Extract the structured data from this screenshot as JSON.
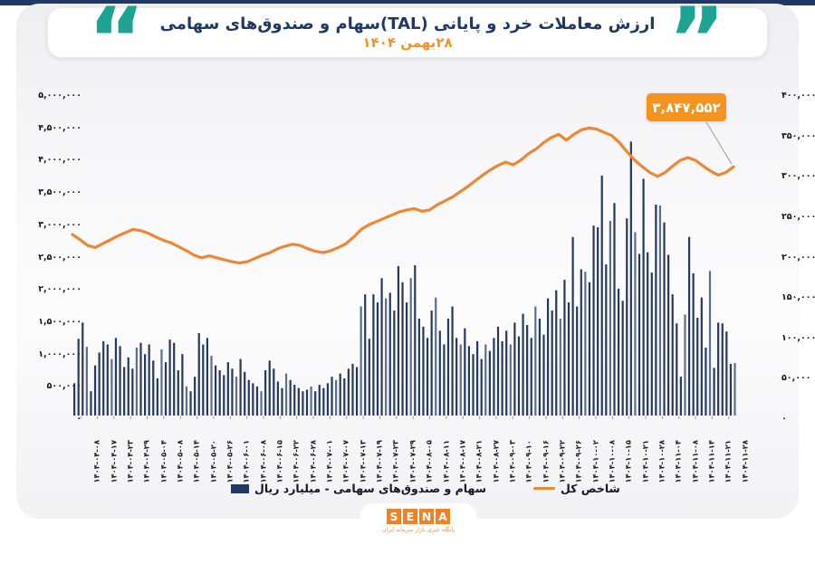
{
  "header": {
    "title": "ارزش معاملات خرد و پایانی (TAL)سهام و صندوق‌های سهامی",
    "subtitle": "۲۸بهمن ۱۴۰۴",
    "open_quote": "“",
    "close_quote": "”"
  },
  "colors": {
    "navy": "#1f3864",
    "bar": "#24395e",
    "bar_light": "#5c6e8e",
    "line": "#ed8733",
    "accent_orange": "#f6921e",
    "teal_quote": "#1ca392",
    "leader_gray": "#9a9a9a",
    "tick_text": "#161616"
  },
  "annotation": {
    "value": "۳,۸۴۷,۵۵۲"
  },
  "legend": {
    "bars_label": "سهام و صندوق‌های سهامی -  میلیارد ریال",
    "line_label": "شاخص کل"
  },
  "footer": {
    "logo_letters": [
      "S",
      "E",
      "N",
      "A"
    ],
    "tagline": "پایگاه خبری بازار سرمایه ایران"
  },
  "chart_data": {
    "type": "bar+line combo",
    "title": "ارزش معاملات خرد و پایانی (TAL)سهام و صندوق‌های سهامی ۲۸بهمن ۱۴۰۴",
    "grid": false,
    "legend_position": "bottom",
    "categories": [
      "۱۴۰۴-۰۴-۰۸",
      "۱۴۰۴-۰۴-۱۷",
      "۱۴۰۴-۰۴-۲۳",
      "۱۴۰۴-۰۴-۲۹",
      "۱۴۰۴-۰۵-۰۴",
      "۱۴۰۴-۰۵-۰۸",
      "۱۴۰۴-۰۵-۱۴",
      "۱۴۰۴-۰۵-۲۰",
      "۱۴۰۴-۰۵-۲۶",
      "۱۴۰۴-۰۶-۰۱",
      "۱۴۰۴-۰۶-۰۸",
      "۱۴۰۴-۰۶-۱۵",
      "۱۴۰۴-۰۶-۲۲",
      "۱۴۰۴-۰۶-۲۸",
      "۱۴۰۴-۰۷-۰۱",
      "۱۴۰۴-۰۷-۰۷",
      "۱۴۰۴-۰۷-۱۳",
      "۱۴۰۴-۰۷-۱۹",
      "۱۴۰۴-۰۷-۲۳",
      "۱۴۰۴-۰۷-۲۹",
      "۱۴۰۴-۰۸-۰۵",
      "۱۴۰۴-۰۸-۱۱",
      "۱۴۰۴-۰۸-۱۷",
      "۱۴۰۴-۰۸-۲۱",
      "۱۴۰۴-۰۸-۲۷",
      "۱۴۰۴-۰۹-۰۳",
      "۱۴۰۴-۰۹-۱۰",
      "۱۴۰۴-۰۹-۱۶",
      "۱۴۰۴-۰۹-۲۲",
      "۱۴۰۴-۰۹-۲۶",
      "۱۴۰۴-۱۰-۰۲",
      "۱۴۰۴-۱۰-۰۸",
      "۱۴۰۴-۱۰-۱۵",
      "۱۴۰۴-۱۰-۲۱",
      "۱۴۰۴-۱۰-۲۸",
      "۱۴۰۴-۱۱-۰۴",
      "۱۴۰۴-۱۱-۰۸",
      "۱۴۰۴-۱۱-۱۴",
      "۱۴۰۴-۱۱-۲۱",
      "۱۴۰۴-۱۱-۲۸"
    ],
    "left_axis": {
      "max": 5000000,
      "min": 0,
      "ticks": [
        "۵,۰۰۰,۰۰۰",
        "۴,۵۰۰,۰۰۰",
        "۴,۰۰۰,۰۰۰",
        "۳,۵۰۰,۰۰۰",
        "۳,۰۰۰,۰۰۰",
        "۲,۵۰۰,۰۰۰",
        "۲,۰۰۰,۰۰۰",
        "۱,۵۰۰,۰۰۰",
        "۱,۰۰۰,۰۰۰",
        "۵۰۰,۰۰۰",
        "۰"
      ]
    },
    "right_axis": {
      "max": 400000,
      "min": 0,
      "ticks": [
        "۴۰۰,۰۰۰",
        "۳۵۰,۰۰۰",
        "۳۰۰,۰۰۰",
        "۲۵۰,۰۰۰",
        "۲۰۰,۰۰۰",
        "۱۵۰,۰۰۰",
        "۱۰۰,۰۰۰",
        "۵۰,۰۰۰",
        "۰"
      ]
    },
    "bar_series": {
      "name": "سهام و صندوق‌های سهامی -  میلیارد ریال",
      "axis": "right",
      "unit": "میلیارد ریال",
      "values": [
        40000,
        95000,
        115000,
        85000,
        30000,
        62000,
        78000,
        92000,
        88000,
        70000,
        96000,
        86000,
        60000,
        72000,
        58000,
        84000,
        90000,
        76000,
        88000,
        68000,
        46000,
        82000,
        66000,
        94000,
        90000,
        56000,
        76000,
        36000,
        30000,
        48000,
        102000,
        88000,
        96000,
        74000,
        62000,
        56000,
        50000,
        66000,
        58000,
        48000,
        70000,
        54000,
        44000,
        40000,
        36000,
        30000,
        56000,
        68000,
        58000,
        42000,
        34000,
        52000,
        44000,
        38000,
        34000,
        30000,
        32000,
        36000,
        30000,
        38000,
        34000,
        40000,
        48000,
        44000,
        52000,
        46000,
        58000,
        64000,
        60000,
        135000,
        150000,
        95000,
        150000,
        140000,
        170000,
        145000,
        152000,
        130000,
        185000,
        165000,
        140000,
        170000,
        186000,
        120000,
        110000,
        96000,
        130000,
        146000,
        105000,
        88000,
        120000,
        135000,
        96000,
        88000,
        108000,
        86000,
        76000,
        92000,
        70000,
        88000,
        80000,
        96000,
        110000,
        92000,
        105000,
        88000,
        115000,
        98000,
        126000,
        112000,
        96000,
        135000,
        120000,
        100000,
        145000,
        130000,
        155000,
        120000,
        168000,
        140000,
        221000,
        135000,
        181000,
        178000,
        165000,
        235000,
        233000,
        297000,
        187000,
        241000,
        263000,
        157000,
        142000,
        244000,
        339000,
        227000,
        200000,
        293000,
        202000,
        177000,
        261000,
        260000,
        239000,
        199000,
        150000,
        114000,
        48000,
        125000,
        221000,
        176000,
        121000,
        146000,
        84000,
        179000,
        59000,
        115000,
        114000,
        104000,
        64000,
        65000
      ]
    },
    "line_series": {
      "name": "شاخص کل",
      "axis": "left",
      "last_value": 3847552,
      "values": [
        2800000,
        2720000,
        2630000,
        2600000,
        2660000,
        2720000,
        2780000,
        2830000,
        2880000,
        2860000,
        2820000,
        2760000,
        2710000,
        2670000,
        2610000,
        2550000,
        2480000,
        2440000,
        2470000,
        2440000,
        2410000,
        2380000,
        2360000,
        2380000,
        2430000,
        2480000,
        2520000,
        2580000,
        2620000,
        2650000,
        2630000,
        2580000,
        2540000,
        2520000,
        2550000,
        2600000,
        2660000,
        2760000,
        2880000,
        2950000,
        3000000,
        3050000,
        3100000,
        3150000,
        3180000,
        3200000,
        3160000,
        3180000,
        3260000,
        3320000,
        3380000,
        3460000,
        3540000,
        3630000,
        3720000,
        3800000,
        3870000,
        3920000,
        3880000,
        3950000,
        4050000,
        4120000,
        4220000,
        4300000,
        4350000,
        4260000,
        4350000,
        4420000,
        4450000,
        4430000,
        4380000,
        4330000,
        4220000,
        4080000,
        3950000,
        3850000,
        3760000,
        3700000,
        3760000,
        3860000,
        3950000,
        3990000,
        3950000,
        3860000,
        3780000,
        3720000,
        3760000,
        3847552
      ]
    }
  }
}
